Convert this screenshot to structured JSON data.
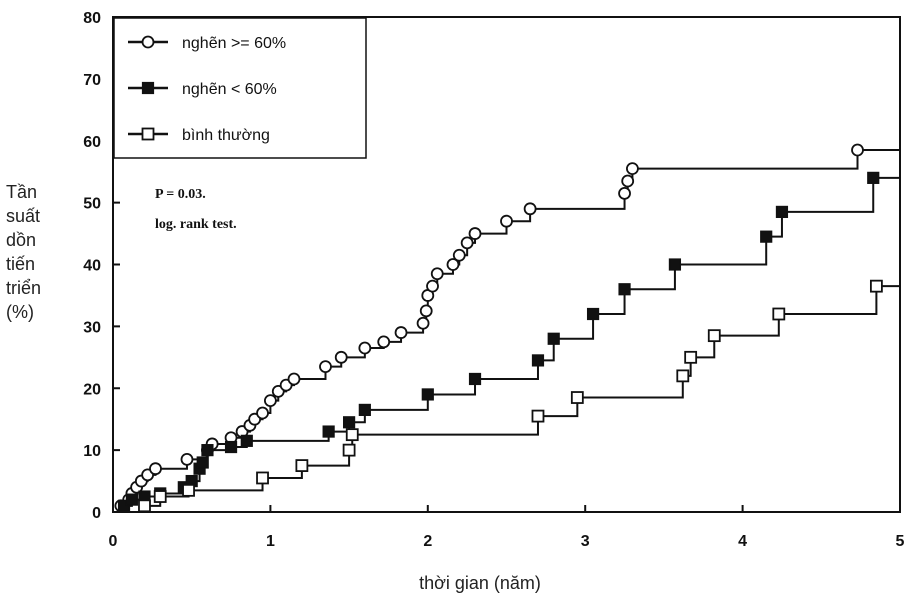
{
  "chart_data": {
    "type": "line",
    "step": true,
    "x_ticks": [
      "0",
      "1",
      "2",
      "3",
      "4",
      "5"
    ],
    "y_ticks": [
      "0",
      "10",
      "20",
      "30",
      "40",
      "50",
      "60",
      "70",
      "80"
    ],
    "xlim": [
      0,
      5
    ],
    "ylim": [
      0,
      80
    ],
    "xlabel": "thời gian (năm)",
    "ylabel_lines": [
      "Tần",
      "suất",
      "dồn",
      "tiến",
      "triển",
      "(%)"
    ],
    "annotation_lines": [
      "P = 0.03.",
      "log. rank test."
    ],
    "legend_position": "top-left",
    "series": [
      {
        "name": "nghẽn >= 60%",
        "marker": "open-circle",
        "points": [
          [
            0,
            0
          ],
          [
            0.05,
            1
          ],
          [
            0.1,
            2
          ],
          [
            0.12,
            3
          ],
          [
            0.15,
            4
          ],
          [
            0.18,
            5
          ],
          [
            0.22,
            6
          ],
          [
            0.27,
            7
          ],
          [
            0.47,
            8.5
          ],
          [
            0.6,
            10
          ],
          [
            0.63,
            11
          ],
          [
            0.75,
            12
          ],
          [
            0.82,
            13
          ],
          [
            0.87,
            14
          ],
          [
            0.9,
            15
          ],
          [
            0.95,
            16
          ],
          [
            1.0,
            18
          ],
          [
            1.05,
            19.5
          ],
          [
            1.1,
            20.5
          ],
          [
            1.15,
            21.5
          ],
          [
            1.35,
            23.5
          ],
          [
            1.45,
            25
          ],
          [
            1.6,
            26.5
          ],
          [
            1.72,
            27.5
          ],
          [
            1.83,
            29
          ],
          [
            1.97,
            30.5
          ],
          [
            1.99,
            32.5
          ],
          [
            2.0,
            35
          ],
          [
            2.03,
            36.5
          ],
          [
            2.06,
            38.5
          ],
          [
            2.16,
            40
          ],
          [
            2.2,
            41.5
          ],
          [
            2.25,
            43.5
          ],
          [
            2.3,
            45
          ],
          [
            2.5,
            47
          ],
          [
            2.65,
            49
          ],
          [
            3.25,
            51.5
          ],
          [
            3.27,
            53.5
          ],
          [
            3.3,
            55.5
          ],
          [
            4.73,
            58.5
          ],
          [
            5.0,
            58.5
          ]
        ]
      },
      {
        "name": "nghẽn < 60%",
        "marker": "filled-square",
        "points": [
          [
            0,
            0
          ],
          [
            0.07,
            1
          ],
          [
            0.12,
            2
          ],
          [
            0.2,
            2.5
          ],
          [
            0.3,
            3
          ],
          [
            0.45,
            4
          ],
          [
            0.5,
            5
          ],
          [
            0.55,
            7
          ],
          [
            0.57,
            8
          ],
          [
            0.6,
            10
          ],
          [
            0.75,
            10.5
          ],
          [
            0.85,
            11.5
          ],
          [
            1.37,
            13
          ],
          [
            1.5,
            14.5
          ],
          [
            1.6,
            16.5
          ],
          [
            2.0,
            19
          ],
          [
            2.3,
            21.5
          ],
          [
            2.7,
            24.5
          ],
          [
            2.8,
            28
          ],
          [
            3.05,
            32
          ],
          [
            3.25,
            36
          ],
          [
            3.57,
            40
          ],
          [
            4.15,
            44.5
          ],
          [
            4.25,
            48.5
          ],
          [
            4.83,
            54
          ],
          [
            5.0,
            54
          ]
        ]
      },
      {
        "name": "bình thường",
        "marker": "open-square",
        "points": [
          [
            0,
            0
          ],
          [
            0.2,
            1
          ],
          [
            0.3,
            2.5
          ],
          [
            0.48,
            3.5
          ],
          [
            0.95,
            5.5
          ],
          [
            1.2,
            7.5
          ],
          [
            1.5,
            10
          ],
          [
            1.52,
            12.5
          ],
          [
            2.7,
            15.5
          ],
          [
            2.95,
            18.5
          ],
          [
            3.62,
            22
          ],
          [
            3.67,
            25
          ],
          [
            3.82,
            28.5
          ],
          [
            4.23,
            32
          ],
          [
            4.85,
            36.5
          ],
          [
            5.0,
            36.5
          ]
        ]
      }
    ]
  },
  "colors": {
    "ink": "#111111",
    "background": "#ffffff"
  }
}
